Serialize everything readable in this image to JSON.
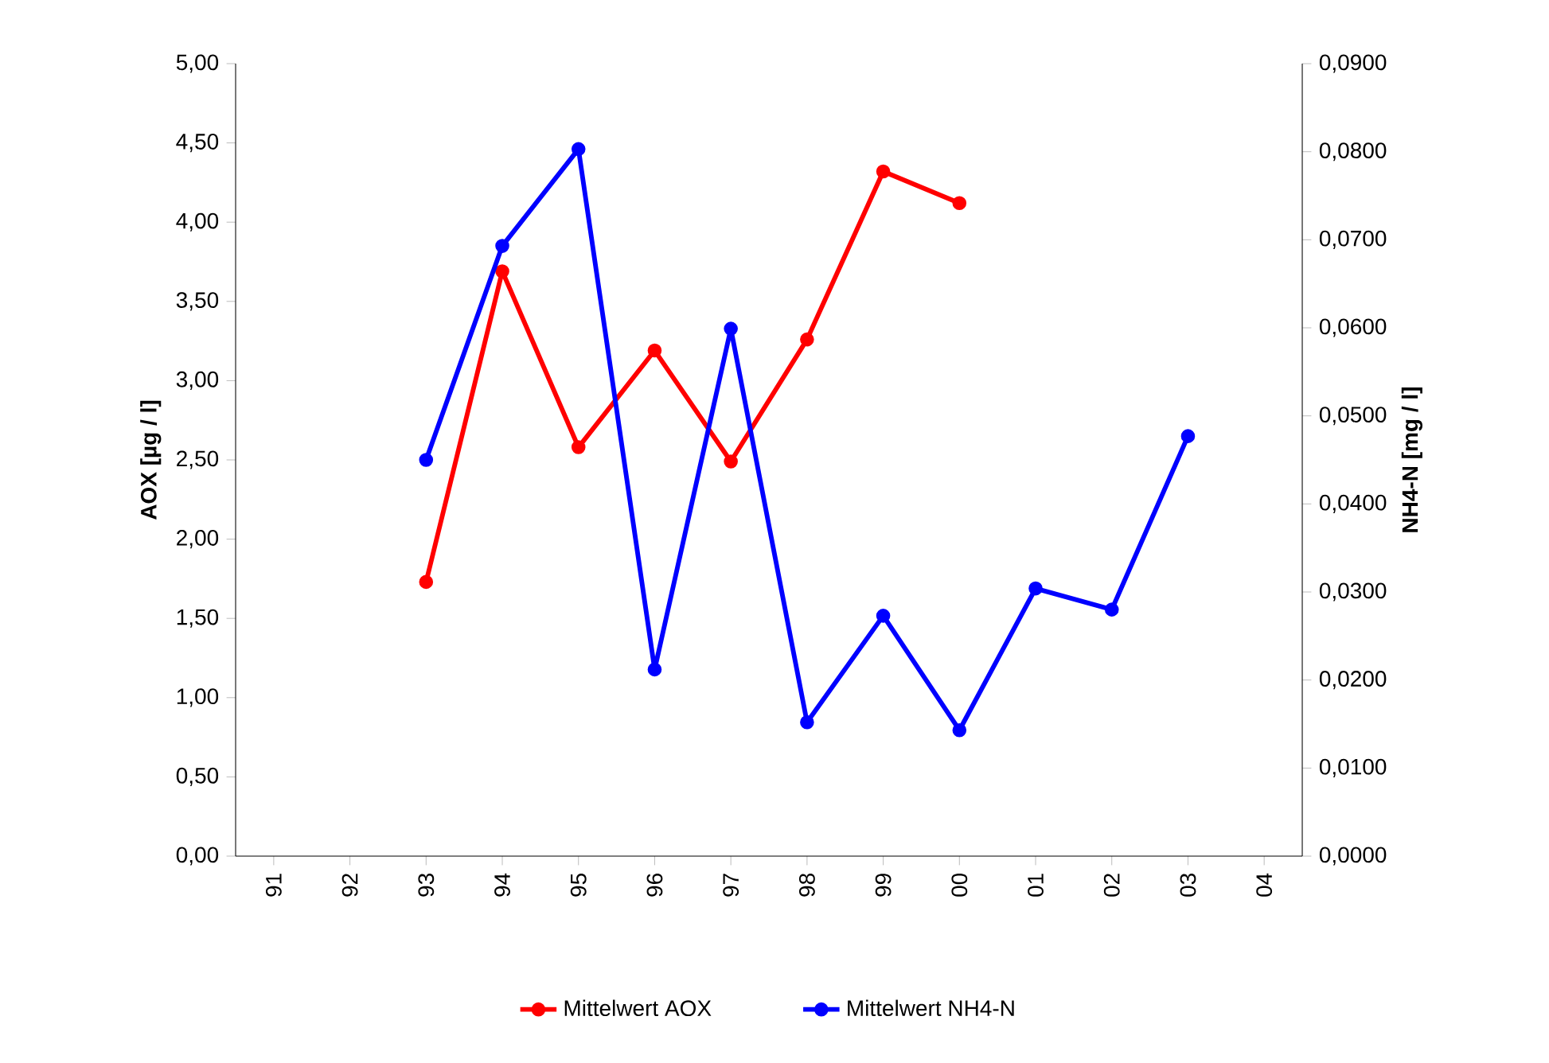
{
  "chart_data": {
    "type": "line",
    "categories": [
      "91",
      "92",
      "93",
      "94",
      "95",
      "96",
      "97",
      "98",
      "99",
      "00",
      "01",
      "02",
      "03",
      "04"
    ],
    "ylabel": "AOX [µg / l]",
    "y2label": "NH4-N [mg / l]",
    "ylim": [
      0,
      5
    ],
    "yticks": [
      {
        "value": 0,
        "label": "0,00"
      },
      {
        "value": 0.5,
        "label": "0,50"
      },
      {
        "value": 1,
        "label": "1,00"
      },
      {
        "value": 1.5,
        "label": "1,50"
      },
      {
        "value": 2,
        "label": "2,00"
      },
      {
        "value": 2.5,
        "label": "2,50"
      },
      {
        "value": 3,
        "label": "3,00"
      },
      {
        "value": 3.5,
        "label": "3,50"
      },
      {
        "value": 4,
        "label": "4,00"
      },
      {
        "value": 4.5,
        "label": "4,50"
      },
      {
        "value": 5,
        "label": "5,00"
      }
    ],
    "y2lim": [
      0,
      0.09
    ],
    "y2ticks": [
      {
        "value": 0,
        "label": "0,0000"
      },
      {
        "value": 0.01,
        "label": "0,0100"
      },
      {
        "value": 0.02,
        "label": "0,0200"
      },
      {
        "value": 0.03,
        "label": "0,0300"
      },
      {
        "value": 0.04,
        "label": "0,0400"
      },
      {
        "value": 0.05,
        "label": "0,0500"
      },
      {
        "value": 0.06,
        "label": "0,0600"
      },
      {
        "value": 0.07,
        "label": "0,0700"
      },
      {
        "value": 0.08,
        "label": "0,0800"
      },
      {
        "value": 0.09,
        "label": "0,0900"
      }
    ],
    "series": [
      {
        "name": "Mittelwert AOX",
        "color": "#ff0000",
        "values": [
          null,
          null,
          1.73,
          3.69,
          2.58,
          3.19,
          2.49,
          3.26,
          4.32,
          4.12,
          null,
          null,
          null,
          null
        ]
      },
      {
        "name": "Mittelwert NH4-N",
        "color": "#0000ff",
        "axis": "y2",
        "values": [
          null,
          null,
          0.045,
          0.0693,
          0.0803,
          0.0212,
          0.0599,
          0.0152,
          0.0273,
          0.0143,
          0.0304,
          0.028,
          0.0477,
          null
        ]
      }
    ],
    "legend": "bottom",
    "marker": "circle",
    "line_style": "solid"
  }
}
